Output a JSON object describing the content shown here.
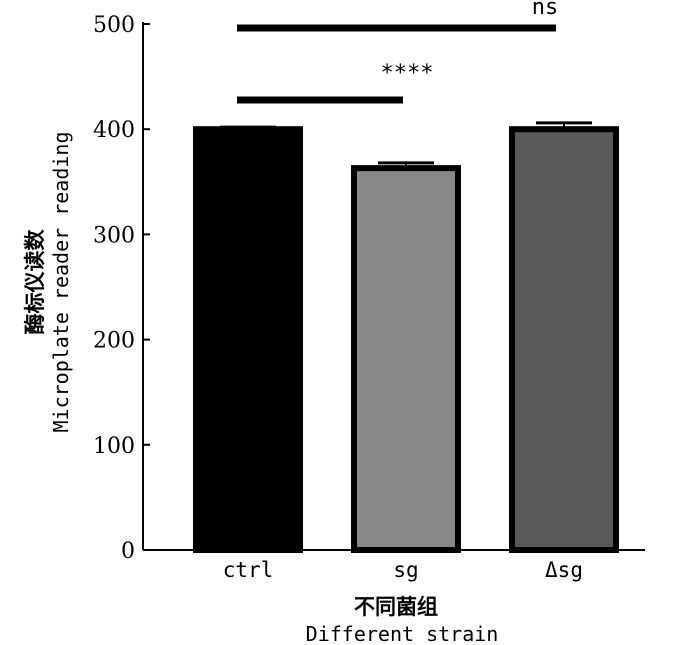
{
  "chart_data": {
    "type": "bar",
    "categories": [
      "ctrl",
      "sg",
      "Δsg"
    ],
    "values": [
      400,
      363,
      400
    ],
    "errors": [
      2,
      5,
      6
    ],
    "colors": [
      "#000000",
      "#888888",
      "#5a5a5a"
    ],
    "ylim": [
      0,
      500
    ],
    "yticks": [
      "0",
      "100",
      "200",
      "300",
      "400",
      "500"
    ],
    "xlabel_cn": "不同菌组",
    "xlabel": "Different strain",
    "ylabel_cn": "酶标仪读数",
    "ylabel": "Microplate reader reading",
    "significance": [
      {
        "label": "****",
        "from": 0,
        "to": 1
      },
      {
        "label": "ns",
        "from": 0,
        "to": 2
      }
    ],
    "grid": false
  }
}
